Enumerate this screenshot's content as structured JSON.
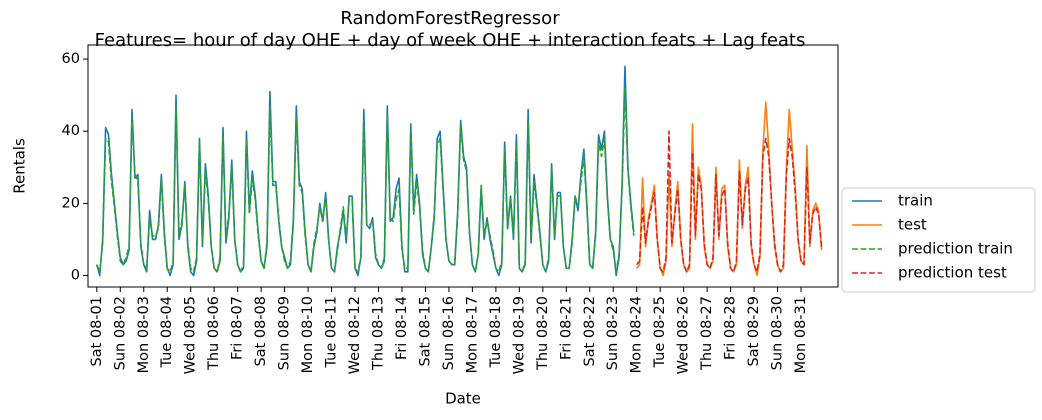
{
  "chart_data": {
    "type": "line",
    "title": "RandomForestRegressor",
    "subtitle": "Features= hour of day OHE + day of week OHE + interaction feats + Lag feats",
    "x_label": "Date",
    "y_label": "Rentals",
    "xlim": [
      -3,
      252.6
    ],
    "ylim": [
      -3.2,
      63.9
    ],
    "yticks": [
      0,
      20,
      40,
      60
    ],
    "xticks": [
      {
        "value": 0,
        "label": "Sat 08-01"
      },
      {
        "value": 8,
        "label": "Sun 08-02"
      },
      {
        "value": 16,
        "label": "Mon 08-03"
      },
      {
        "value": 24,
        "label": "Tue 08-04"
      },
      {
        "value": 32,
        "label": "Wed 08-05"
      },
      {
        "value": 40,
        "label": "Thu 08-06"
      },
      {
        "value": 48,
        "label": "Fri 08-07"
      },
      {
        "value": 56,
        "label": "Sat 08-08"
      },
      {
        "value": 64,
        "label": "Sun 08-09"
      },
      {
        "value": 72,
        "label": "Mon 08-10"
      },
      {
        "value": 80,
        "label": "Tue 08-11"
      },
      {
        "value": 88,
        "label": "Wed 08-12"
      },
      {
        "value": 96,
        "label": "Thu 08-13"
      },
      {
        "value": 104,
        "label": "Fri 08-14"
      },
      {
        "value": 112,
        "label": "Sat 08-15"
      },
      {
        "value": 120,
        "label": "Sun 08-16"
      },
      {
        "value": 128,
        "label": "Mon 08-17"
      },
      {
        "value": 136,
        "label": "Tue 08-18"
      },
      {
        "value": 144,
        "label": "Wed 08-19"
      },
      {
        "value": 152,
        "label": "Thu 08-20"
      },
      {
        "value": 160,
        "label": "Fri 08-21"
      },
      {
        "value": 168,
        "label": "Sat 08-22"
      },
      {
        "value": 176,
        "label": "Sun 08-23"
      },
      {
        "value": 184,
        "label": "Mon 08-24"
      },
      {
        "value": 192,
        "label": "Tue 08-25"
      },
      {
        "value": 200,
        "label": "Wed 08-26"
      },
      {
        "value": 208,
        "label": "Thu 08-27"
      },
      {
        "value": 216,
        "label": "Fri 08-28"
      },
      {
        "value": 224,
        "label": "Sat 08-29"
      },
      {
        "value": 232,
        "label": "Sun 08-30"
      },
      {
        "value": 240,
        "label": "Mon 08-31"
      }
    ],
    "grid": false,
    "legend": "right outside",
    "series": [
      {
        "name": "train",
        "color": "#1f77b4",
        "linestyle": "solid",
        "values": [
          3,
          0,
          10,
          41,
          39,
          28,
          20,
          12,
          5,
          3,
          4,
          7,
          46,
          27,
          28,
          8,
          3,
          1,
          18,
          10,
          10,
          14,
          28,
          12,
          2,
          0,
          3,
          50,
          10,
          14,
          26,
          8,
          1,
          0,
          4,
          38,
          8,
          31,
          22,
          8,
          2,
          1,
          4,
          41,
          9,
          16,
          32,
          10,
          3,
          1,
          2,
          40,
          18,
          29,
          22,
          12,
          4,
          2,
          8,
          51,
          26,
          26,
          15,
          8,
          5,
          2,
          3,
          15,
          47,
          26,
          24,
          12,
          3,
          1,
          8,
          12,
          20,
          15,
          23,
          10,
          2,
          1,
          8,
          12,
          18,
          9,
          22,
          22,
          2,
          0,
          5,
          46,
          14,
          13,
          16,
          5,
          3,
          2,
          4,
          47,
          15,
          16,
          24,
          27,
          8,
          1,
          1,
          42,
          18,
          28,
          20,
          6,
          2,
          1,
          8,
          16,
          38,
          40,
          25,
          10,
          4,
          3,
          3,
          18,
          43,
          33,
          30,
          12,
          3,
          1,
          6,
          24,
          10,
          16,
          10,
          6,
          2,
          0,
          3,
          37,
          13,
          22,
          10,
          39,
          2,
          1,
          3,
          46,
          9,
          28,
          20,
          12,
          3,
          1,
          4,
          31,
          10,
          23,
          23,
          8,
          2,
          2,
          10,
          22,
          18,
          28,
          35,
          20,
          3,
          2,
          12,
          39,
          35,
          40,
          22,
          10,
          8,
          0,
          5,
          25,
          58,
          30,
          20,
          12,
          null,
          null,
          null,
          null,
          null,
          null,
          null,
          null,
          null,
          null,
          null,
          null,
          null,
          null,
          null,
          null,
          null,
          null,
          null,
          null,
          null,
          null,
          null,
          null,
          null,
          null,
          null,
          null,
          null,
          null,
          null,
          null,
          null,
          null,
          null,
          null,
          null,
          null,
          null,
          null,
          null,
          null,
          null,
          null,
          null,
          null,
          null,
          null,
          null,
          null,
          null,
          null,
          null,
          null,
          null,
          null,
          null,
          null,
          null,
          null,
          null,
          null,
          null,
          null
        ]
      },
      {
        "name": "test",
        "color": "#ff7f0e",
        "linestyle": "solid",
        "values": [
          null,
          null,
          null,
          null,
          null,
          null,
          null,
          null,
          null,
          null,
          null,
          null,
          null,
          null,
          null,
          null,
          null,
          null,
          null,
          null,
          null,
          null,
          null,
          null,
          null,
          null,
          null,
          null,
          null,
          null,
          null,
          null,
          null,
          null,
          null,
          null,
          null,
          null,
          null,
          null,
          null,
          null,
          null,
          null,
          null,
          null,
          null,
          null,
          null,
          null,
          null,
          null,
          null,
          null,
          null,
          null,
          null,
          null,
          null,
          null,
          null,
          null,
          null,
          null,
          null,
          null,
          null,
          null,
          null,
          null,
          null,
          null,
          null,
          null,
          null,
          null,
          null,
          null,
          null,
          null,
          null,
          null,
          null,
          null,
          null,
          null,
          null,
          null,
          null,
          null,
          null,
          null,
          null,
          null,
          null,
          null,
          null,
          null,
          null,
          null,
          null,
          null,
          null,
          null,
          null,
          null,
          null,
          null,
          null,
          null,
          null,
          null,
          null,
          null,
          null,
          null,
          null,
          null,
          null,
          null,
          null,
          null,
          null,
          null,
          null,
          null,
          null,
          null,
          null,
          null,
          null,
          null,
          null,
          null,
          null,
          null,
          null,
          null,
          null,
          null,
          null,
          null,
          null,
          null,
          null,
          null,
          null,
          null,
          null,
          null,
          null,
          null,
          null,
          null,
          null,
          null,
          null,
          null,
          null,
          null,
          null,
          null,
          null,
          null,
          null,
          null,
          null,
          null,
          null,
          null,
          null,
          null,
          null,
          null,
          null,
          null,
          null,
          null,
          null,
          null,
          null,
          null,
          null,
          null,
          2,
          3,
          27,
          8,
          16,
          20,
          25,
          10,
          2,
          0,
          4,
          28,
          8,
          18,
          26,
          10,
          3,
          1,
          2,
          42,
          10,
          30,
          25,
          8,
          3,
          2,
          4,
          30,
          10,
          24,
          25,
          8,
          2,
          1,
          3,
          32,
          13,
          25,
          30,
          8,
          3,
          0,
          5,
          35,
          48,
          35,
          20,
          8,
          3,
          1,
          2,
          30,
          46,
          35,
          25,
          10,
          4,
          3,
          36,
          8,
          18,
          20,
          18,
          7
        ]
      },
      {
        "name": "prediction train",
        "color": "#2ca02c",
        "linestyle": "dashed",
        "values": [
          3,
          1,
          9,
          38,
          37,
          26,
          19,
          11,
          4,
          3,
          5,
          8,
          44,
          28,
          26,
          9,
          3,
          2,
          16,
          11,
          11,
          13,
          27,
          11,
          2,
          1,
          4,
          47,
          11,
          15,
          25,
          9,
          2,
          1,
          5,
          37,
          9,
          29,
          21,
          8,
          2,
          1,
          5,
          39,
          10,
          17,
          30,
          10,
          3,
          1,
          3,
          38,
          17,
          27,
          21,
          11,
          4,
          2,
          9,
          47,
          25,
          25,
          16,
          8,
          4,
          2,
          4,
          16,
          44,
          25,
          23,
          11,
          3,
          1,
          9,
          13,
          19,
          15,
          22,
          10,
          2,
          1,
          7,
          13,
          19,
          10,
          21,
          21,
          2,
          1,
          5,
          43,
          14,
          14,
          15,
          6,
          3,
          2,
          5,
          44,
          16,
          15,
          21,
          24,
          7,
          2,
          2,
          40,
          17,
          26,
          19,
          7,
          2,
          1,
          8,
          17,
          36,
          38,
          24,
          10,
          4,
          3,
          4,
          17,
          42,
          32,
          29,
          12,
          3,
          1,
          6,
          25,
          11,
          15,
          11,
          7,
          2,
          1,
          4,
          35,
          13,
          21,
          11,
          36,
          2,
          1,
          4,
          43,
          10,
          26,
          19,
          11,
          3,
          1,
          5,
          30,
          11,
          22,
          22,
          8,
          2,
          2,
          9,
          22,
          19,
          26,
          33,
          19,
          3,
          2,
          11,
          37,
          33,
          38,
          21,
          10,
          7,
          1,
          6,
          24,
          52,
          29,
          19,
          11,
          null,
          null,
          null,
          null,
          null,
          null,
          null,
          null,
          null,
          null,
          null,
          null,
          null,
          null,
          null,
          null,
          null,
          null,
          null,
          null,
          null,
          null,
          null,
          null,
          null,
          null,
          null,
          null,
          null,
          null,
          null,
          null,
          null,
          null,
          null,
          null,
          null,
          null,
          null,
          null,
          null,
          null,
          null,
          null,
          null,
          null,
          null,
          null,
          null,
          null,
          null,
          null,
          null,
          null,
          null,
          null,
          null,
          null,
          null,
          null,
          null,
          null,
          null,
          null
        ]
      },
      {
        "name": "prediction test",
        "color": "#d62728",
        "linestyle": "dashed",
        "values": [
          null,
          null,
          null,
          null,
          null,
          null,
          null,
          null,
          null,
          null,
          null,
          null,
          null,
          null,
          null,
          null,
          null,
          null,
          null,
          null,
          null,
          null,
          null,
          null,
          null,
          null,
          null,
          null,
          null,
          null,
          null,
          null,
          null,
          null,
          null,
          null,
          null,
          null,
          null,
          null,
          null,
          null,
          null,
          null,
          null,
          null,
          null,
          null,
          null,
          null,
          null,
          null,
          null,
          null,
          null,
          null,
          null,
          null,
          null,
          null,
          null,
          null,
          null,
          null,
          null,
          null,
          null,
          null,
          null,
          null,
          null,
          null,
          null,
          null,
          null,
          null,
          null,
          null,
          null,
          null,
          null,
          null,
          null,
          null,
          null,
          null,
          null,
          null,
          null,
          null,
          null,
          null,
          null,
          null,
          null,
          null,
          null,
          null,
          null,
          null,
          null,
          null,
          null,
          null,
          null,
          null,
          null,
          null,
          null,
          null,
          null,
          null,
          null,
          null,
          null,
          null,
          null,
          null,
          null,
          null,
          null,
          null,
          null,
          null,
          null,
          null,
          null,
          null,
          null,
          null,
          null,
          null,
          null,
          null,
          null,
          null,
          null,
          null,
          null,
          null,
          null,
          null,
          null,
          null,
          null,
          null,
          null,
          null,
          null,
          null,
          null,
          null,
          null,
          null,
          null,
          null,
          null,
          null,
          null,
          null,
          null,
          null,
          null,
          null,
          null,
          null,
          null,
          null,
          null,
          null,
          null,
          null,
          null,
          null,
          null,
          null,
          null,
          null,
          null,
          null,
          null,
          null,
          null,
          null,
          3,
          4,
          19,
          9,
          15,
          19,
          23,
          10,
          2,
          1,
          5,
          40,
          9,
          17,
          24,
          10,
          3,
          1,
          3,
          34,
          11,
          28,
          24,
          9,
          3,
          2,
          5,
          28,
          11,
          22,
          24,
          9,
          2,
          1,
          4,
          29,
          14,
          24,
          27,
          9,
          3,
          1,
          6,
          33,
          38,
          33,
          20,
          9,
          3,
          1,
          3,
          28,
          38,
          33,
          23,
          10,
          4,
          3,
          30,
          9,
          17,
          19,
          17,
          8
        ]
      }
    ]
  }
}
